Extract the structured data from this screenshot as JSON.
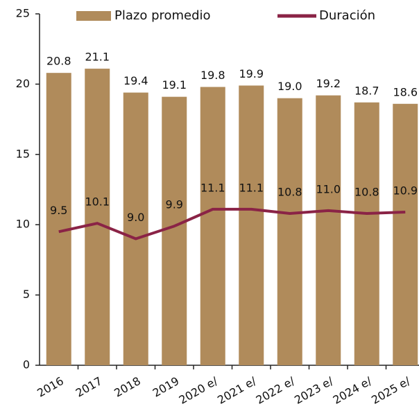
{
  "chart_data": {
    "type": "bar",
    "categories": [
      "2016",
      "2017",
      "2018",
      "2019",
      "2020 e/",
      "2021 e/",
      "2022 e/",
      "2023 e/",
      "2024 e/",
      "2025 e/"
    ],
    "series": [
      {
        "name": "Plazo promedio",
        "type": "bar",
        "color": "#b08b5b",
        "values": [
          20.8,
          21.1,
          19.4,
          19.1,
          19.8,
          19.9,
          19.0,
          19.2,
          18.7,
          18.6
        ],
        "value_labels": [
          "20.8",
          "21.1",
          "19.4",
          "19.1",
          "19.8",
          "19.9",
          "19.0",
          "19.2",
          "18.7",
          "18.6"
        ]
      },
      {
        "name": "Duración",
        "type": "line",
        "color": "#8a2346",
        "values": [
          9.5,
          10.1,
          9.0,
          9.9,
          11.1,
          11.1,
          10.8,
          11.0,
          10.8,
          10.9
        ],
        "value_labels": [
          "9.5",
          "10.1",
          "9.0",
          "9.9",
          "11.1",
          "11.1",
          "10.8",
          "11.0",
          "10.8",
          "10.9"
        ]
      }
    ],
    "ylim": [
      0,
      25
    ],
    "yticks": [
      0,
      5,
      10,
      15,
      20,
      25
    ]
  }
}
